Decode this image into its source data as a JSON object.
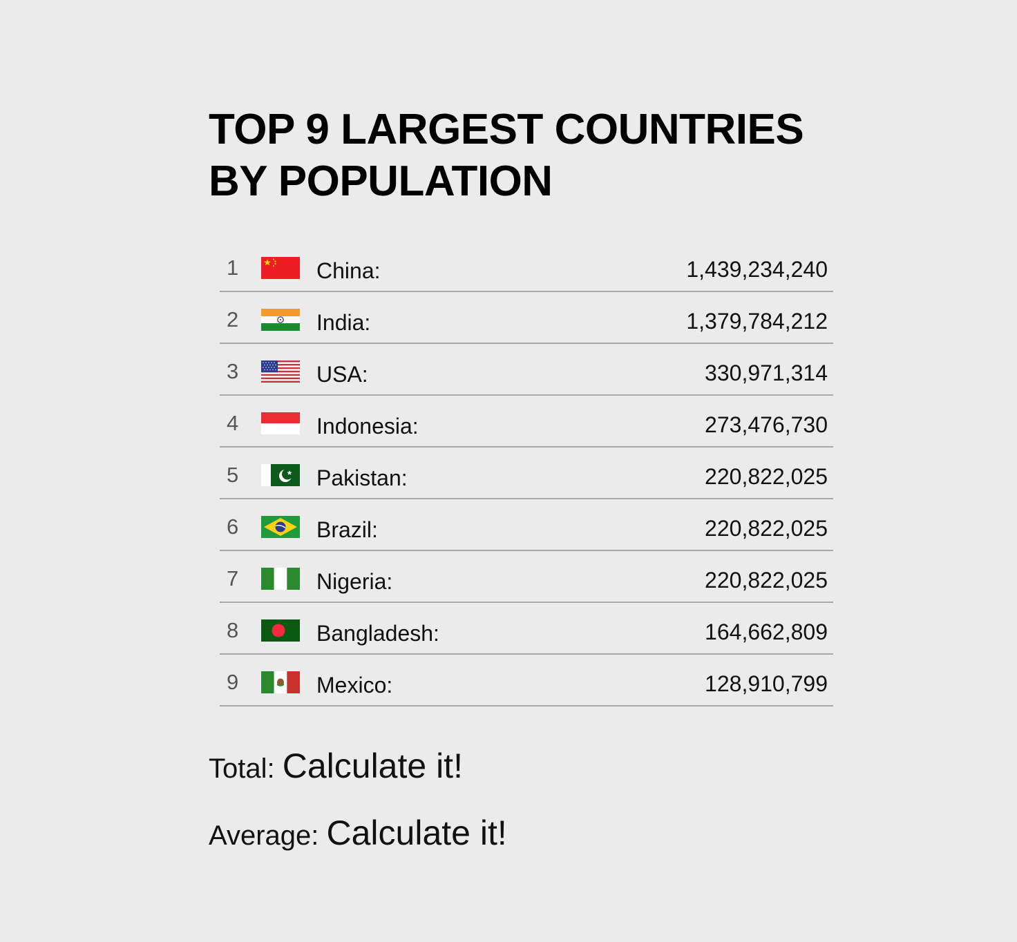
{
  "title": "TOP 9 LARGEST COUNTRIES BY POPULATION",
  "countries": [
    {
      "rank": "1",
      "name": "China:",
      "population": "1,439,234,240",
      "flag": "flag-china-icon"
    },
    {
      "rank": "2",
      "name": "India:",
      "population": "1,379,784,212",
      "flag": "flag-india-icon"
    },
    {
      "rank": "3",
      "name": "USA:",
      "population": "330,971,314",
      "flag": "flag-usa-icon"
    },
    {
      "rank": "4",
      "name": "Indonesia:",
      "population": "273,476,730",
      "flag": "flag-indonesia-icon"
    },
    {
      "rank": "5",
      "name": "Pakistan:",
      "population": "220,822,025",
      "flag": "flag-pakistan-icon"
    },
    {
      "rank": "6",
      "name": "Brazil:",
      "population": "220,822,025",
      "flag": "flag-brazil-icon"
    },
    {
      "rank": "7",
      "name": "Nigeria:",
      "population": "220,822,025",
      "flag": "flag-nigeria-icon"
    },
    {
      "rank": "8",
      "name": "Bangladesh:",
      "population": "164,662,809",
      "flag": "flag-bangladesh-icon"
    },
    {
      "rank": "9",
      "name": "Mexico:",
      "population": "128,910,799",
      "flag": "flag-mexico-icon"
    }
  ],
  "summary": {
    "total_label": "Total:",
    "total_value": "Calculate it!",
    "average_label": "Average:",
    "average_value": "Calculate it!"
  },
  "colors": {
    "background": "#ebebeb",
    "divider": "#a8a8a8",
    "text": "#111111",
    "rank": "#555555"
  }
}
